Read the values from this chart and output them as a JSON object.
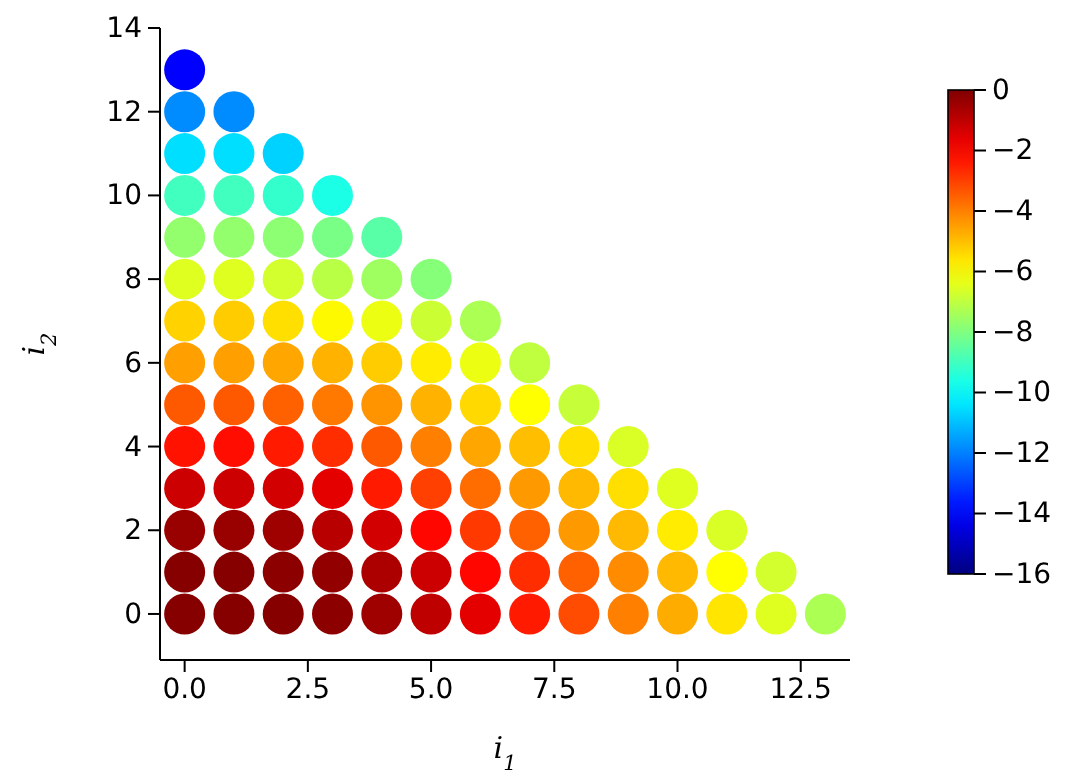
{
  "chart_data": {
    "type": "scatter",
    "xlabel": "i$_{1}$",
    "ylabel": "i$_{2}$",
    "marker": "circle",
    "grid": false,
    "xlim": [
      -0.5,
      13.5
    ],
    "xticks": [
      {
        "value": 0,
        "label": "0.0"
      },
      {
        "value": 2.5,
        "label": "2.5"
      },
      {
        "value": 5,
        "label": "5.0"
      },
      {
        "value": 7.5,
        "label": "7.5"
      },
      {
        "value": 10,
        "label": "10.0"
      },
      {
        "value": 12.5,
        "label": "12.5"
      }
    ],
    "ylim": [
      -1.1,
      14
    ],
    "yticks": [
      0,
      2,
      4,
      6,
      8,
      10,
      12,
      14
    ],
    "clim": [
      -16,
      0
    ],
    "cticks": [
      0,
      -2,
      -4,
      -6,
      -8,
      -10,
      -12,
      -14,
      -16
    ],
    "x": [
      0,
      1,
      2,
      3,
      4,
      5,
      6,
      7,
      8,
      9,
      10,
      11,
      12,
      13,
      0,
      1,
      2,
      3,
      4,
      5,
      6,
      7,
      8,
      9,
      10,
      11,
      12,
      0,
      1,
      2,
      3,
      4,
      5,
      6,
      7,
      8,
      9,
      10,
      11,
      0,
      1,
      2,
      3,
      4,
      5,
      6,
      7,
      8,
      9,
      10,
      0,
      1,
      2,
      3,
      4,
      5,
      6,
      7,
      8,
      9,
      0,
      1,
      2,
      3,
      4,
      5,
      6,
      7,
      8,
      0,
      1,
      2,
      3,
      4,
      5,
      6,
      7,
      0,
      1,
      2,
      3,
      4,
      5,
      6,
      0,
      1,
      2,
      3,
      4,
      5,
      0,
      1,
      2,
      3,
      4,
      0,
      1,
      2,
      3,
      0,
      1,
      2,
      0,
      1,
      0
    ],
    "values": [
      0,
      0,
      0,
      0,
      0,
      0,
      0,
      0,
      0,
      0,
      0,
      0,
      0,
      0,
      1,
      1,
      1,
      1,
      1,
      1,
      1,
      1,
      1,
      1,
      1,
      1,
      1,
      2,
      2,
      2,
      2,
      2,
      2,
      2,
      2,
      2,
      2,
      2,
      2,
      3,
      3,
      3,
      3,
      3,
      3,
      3,
      3,
      3,
      3,
      3,
      4,
      4,
      4,
      4,
      4,
      4,
      4,
      4,
      4,
      4,
      5,
      5,
      5,
      5,
      5,
      5,
      5,
      5,
      5,
      6,
      6,
      6,
      6,
      6,
      6,
      6,
      6,
      7,
      7,
      7,
      7,
      7,
      7,
      7,
      8,
      8,
      8,
      8,
      8,
      8,
      9,
      9,
      9,
      9,
      9,
      10,
      10,
      10,
      10,
      11,
      11,
      11,
      12,
      12,
      13
    ],
    "cvalues": [
      -0.1,
      -0.1,
      -0.1,
      -0.2,
      -0.5,
      -1.0,
      -1.6,
      -2.4,
      -3.2,
      -4.0,
      -4.7,
      -5.6,
      -6.5,
      -7.3,
      -0.1,
      -0.1,
      -0.2,
      -0.3,
      -0.7,
      -1.2,
      -2.1,
      -2.7,
      -3.5,
      -4.2,
      -4.9,
      -6.0,
      -6.7,
      -0.4,
      -0.4,
      -0.5,
      -0.9,
      -1.3,
      -2.1,
      -2.9,
      -3.5,
      -4.4,
      -4.9,
      -5.7,
      -6.6,
      -1.2,
      -1.2,
      -1.3,
      -1.6,
      -2.4,
      -3.0,
      -3.7,
      -4.4,
      -4.9,
      -5.5,
      -6.5,
      -2.3,
      -2.2,
      -2.4,
      -2.7,
      -3.4,
      -4.0,
      -4.6,
      -5.0,
      -5.5,
      -6.6,
      -3.4,
      -3.4,
      -3.5,
      -3.9,
      -4.3,
      -4.8,
      -5.4,
      -6.0,
      -6.9,
      -4.5,
      -4.5,
      -4.6,
      -4.8,
      -5.2,
      -5.7,
      -6.3,
      -7.0,
      -5.3,
      -5.2,
      -5.5,
      -5.9,
      -6.3,
      -6.8,
      -7.3,
      -6.5,
      -6.5,
      -6.7,
      -7.1,
      -7.5,
      -7.9,
      -7.7,
      -7.7,
      -7.8,
      -8.1,
      -8.6,
      -9.0,
      -9.0,
      -9.2,
      -9.6,
      -10.5,
      -10.5,
      -10.7,
      -11.8,
      -11.8,
      -14.0
    ]
  }
}
